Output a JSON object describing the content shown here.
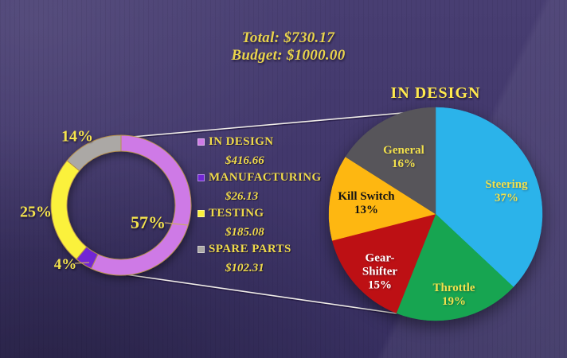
{
  "chart_data": [
    {
      "type": "pie",
      "variant": "donut",
      "name": "budget-breakdown-donut",
      "total_label": "Total: $730.17",
      "budget_label": "Budget: $1000.00",
      "categories": [
        "IN DESIGN",
        "MANUFACTURING",
        "TESTING",
        "SPARE PARTS"
      ],
      "values_percent": [
        57,
        4,
        25,
        14
      ],
      "values_amount": [
        416.66,
        26.13,
        185.08,
        102.31
      ],
      "legend_position": "right",
      "slices": [
        {
          "label": "IN DESIGN",
          "pct": "57%",
          "value": 57,
          "amount": "$416.66",
          "color": "#CE7AE6"
        },
        {
          "label": "MANUFACTURING",
          "pct": "4%",
          "value": 4,
          "amount": "$26.13",
          "color": "#7226D4"
        },
        {
          "label": "TESTING",
          "pct": "25%",
          "value": 25,
          "amount": "$185.08",
          "color": "#FBF13C"
        },
        {
          "label": "SPARE PARTS",
          "pct": "14%",
          "value": 14,
          "amount": "$102.31",
          "color": "#ABA8A5"
        }
      ]
    },
    {
      "type": "pie",
      "variant": "detail-pie",
      "name": "in-design-detail-pie",
      "title": "IN DESIGN",
      "categories": [
        "Steering",
        "Throttle",
        "Gear-Shifter",
        "Kill Switch",
        "General"
      ],
      "values_percent": [
        37,
        19,
        15,
        13,
        16
      ],
      "slices": [
        {
          "label": "Steering",
          "pct": "37%",
          "value": 37,
          "color": "#2BB3EA",
          "text_color": "#F2E14C"
        },
        {
          "label": "Throttle",
          "pct": "19%",
          "value": 19,
          "color": "#17A551",
          "text_color": "#F2E14C"
        },
        {
          "label": "Gear-Shifter",
          "pct": "15%",
          "value": 15,
          "color": "#BD1014",
          "text_color": "#FFFFFF"
        },
        {
          "label": "Kill Switch",
          "pct": "13%",
          "value": 13,
          "color": "#FEB711",
          "text_color": "#141414"
        },
        {
          "label": "General",
          "pct": "16%",
          "value": 16,
          "color": "#57555A",
          "text_color": "#F2E14C"
        }
      ]
    }
  ],
  "colors": {
    "background": "#42386C",
    "accent_yellow": "#F0DB4B",
    "callout_line": "#F0EDE8",
    "donut_outline": "#B6914E",
    "leader_line": "#C9A86A"
  }
}
